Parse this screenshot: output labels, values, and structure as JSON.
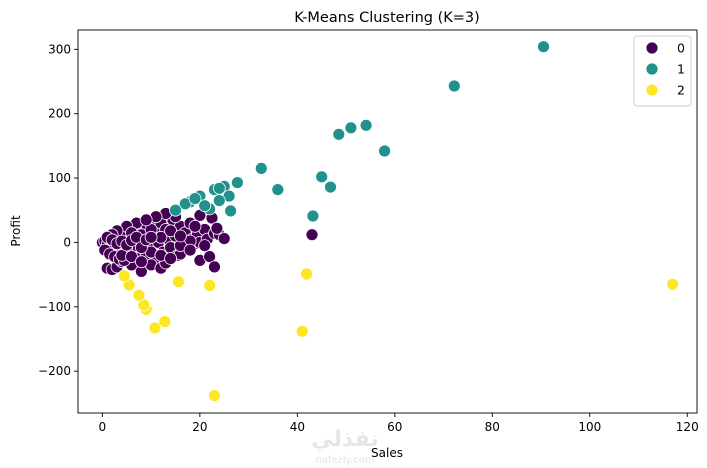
{
  "chart_data": {
    "type": "scatter",
    "title": "K-Means Clustering (K=3)",
    "xlabel": "Sales",
    "ylabel": "Profit",
    "xlim": [
      -5,
      122
    ],
    "ylim": [
      -265,
      330
    ],
    "xticks": [
      0,
      20,
      40,
      60,
      80,
      100,
      120
    ],
    "yticks": [
      -200,
      -100,
      0,
      100,
      200,
      300
    ],
    "legend_position": "top-right",
    "series": [
      {
        "name": "0",
        "color": "#440154",
        "points": [
          [
            0,
            0
          ],
          [
            0.5,
            2
          ],
          [
            1,
            -3
          ],
          [
            1.5,
            5
          ],
          [
            2,
            -8
          ],
          [
            2.5,
            3
          ],
          [
            3,
            -12
          ],
          [
            3,
            10
          ],
          [
            3.5,
            -5
          ],
          [
            4,
            6
          ],
          [
            4.5,
            -15
          ],
          [
            5,
            12
          ],
          [
            5,
            -20
          ],
          [
            5.5,
            0
          ],
          [
            6,
            8
          ],
          [
            6.5,
            -10
          ],
          [
            7,
            18
          ],
          [
            7,
            -25
          ],
          [
            7.5,
            4
          ],
          [
            8,
            -2
          ],
          [
            8.5,
            22
          ],
          [
            9,
            -18
          ],
          [
            9.5,
            10
          ],
          [
            10,
            -6
          ],
          [
            10.5,
            25
          ],
          [
            11,
            14
          ],
          [
            11,
            -28
          ],
          [
            11.5,
            0
          ],
          [
            12,
            30
          ],
          [
            12.5,
            -15
          ],
          [
            13,
            20
          ],
          [
            13.5,
            5
          ],
          [
            14,
            -8
          ],
          [
            14.5,
            35
          ],
          [
            15,
            10
          ],
          [
            15.5,
            -20
          ],
          [
            16,
            25
          ],
          [
            16.5,
            0
          ],
          [
            17,
            15
          ],
          [
            17.5,
            -10
          ],
          [
            18,
            30
          ],
          [
            18.5,
            5
          ],
          [
            19,
            -2
          ],
          [
            19.5,
            12
          ],
          [
            20,
            0
          ],
          [
            20,
            -28
          ],
          [
            21,
            20
          ],
          [
            21.5,
            5
          ],
          [
            22,
            -22
          ],
          [
            22.5,
            38
          ],
          [
            23,
            14
          ],
          [
            23,
            -38
          ],
          [
            24,
            12
          ],
          [
            25,
            6
          ],
          [
            23.5,
            22
          ],
          [
            1,
            -40
          ],
          [
            2,
            -42
          ],
          [
            3,
            -38
          ],
          [
            4,
            -30
          ],
          [
            6,
            -35
          ],
          [
            8,
            -45
          ],
          [
            10,
            -35
          ],
          [
            12,
            -40
          ],
          [
            13,
            -32
          ],
          [
            16,
            -18
          ],
          [
            18,
            2
          ],
          [
            20,
            42
          ],
          [
            21,
            -5
          ],
          [
            9,
            28
          ],
          [
            7,
            30
          ],
          [
            5,
            25
          ],
          [
            3,
            18
          ],
          [
            2,
            12
          ],
          [
            1,
            8
          ],
          [
            0.5,
            -12
          ],
          [
            1.5,
            -18
          ],
          [
            2.5,
            -22
          ],
          [
            3.5,
            -26
          ],
          [
            4.5,
            -28
          ],
          [
            6,
            15
          ],
          [
            8,
            12
          ],
          [
            10,
            20
          ],
          [
            12,
            8
          ],
          [
            14,
            18
          ],
          [
            16,
            -5
          ],
          [
            18,
            -12
          ],
          [
            15,
            40
          ],
          [
            13,
            45
          ],
          [
            11,
            40
          ],
          [
            9,
            35
          ],
          [
            7,
            -5
          ],
          [
            5,
            -10
          ],
          [
            4,
            -20
          ],
          [
            6,
            -22
          ],
          [
            8,
            -30
          ],
          [
            10,
            -15
          ],
          [
            12,
            -20
          ],
          [
            14,
            -25
          ],
          [
            16,
            10
          ],
          [
            19,
            25
          ],
          [
            43,
            12
          ],
          [
            2,
            4
          ],
          [
            3,
            -2
          ],
          [
            4,
            2
          ],
          [
            5,
            -4
          ],
          [
            6,
            3
          ],
          [
            7,
            8
          ],
          [
            8,
            -8
          ],
          [
            9,
            4
          ],
          [
            10,
            8
          ]
        ]
      },
      {
        "name": "1",
        "color": "#21918c",
        "points": [
          [
            90.5,
            304
          ],
          [
            72.2,
            243
          ],
          [
            54.1,
            182
          ],
          [
            51,
            178
          ],
          [
            48.5,
            168
          ],
          [
            57.9,
            142
          ],
          [
            32.6,
            115
          ],
          [
            45,
            102
          ],
          [
            36,
            82
          ],
          [
            46.8,
            86
          ],
          [
            43.2,
            41
          ],
          [
            27.7,
            93
          ],
          [
            25,
            87
          ],
          [
            23,
            82
          ],
          [
            24,
            84
          ],
          [
            26,
            72
          ],
          [
            20,
            72
          ],
          [
            18,
            63
          ],
          [
            22,
            52
          ],
          [
            26.3,
            49
          ],
          [
            17,
            60
          ],
          [
            19,
            68
          ],
          [
            15,
            50
          ],
          [
            21,
            57
          ],
          [
            24,
            65
          ]
        ]
      },
      {
        "name": "2",
        "color": "#fde725",
        "points": [
          [
            117,
            -65
          ],
          [
            41.9,
            -49
          ],
          [
            41,
            -138
          ],
          [
            23,
            -238
          ],
          [
            22,
            -67
          ],
          [
            15.6,
            -61
          ],
          [
            12.8,
            -123
          ],
          [
            10.8,
            -133
          ],
          [
            9,
            -104
          ],
          [
            8.5,
            -97
          ],
          [
            7.5,
            -82
          ],
          [
            5.5,
            -66
          ],
          [
            4.5,
            -52
          ]
        ]
      }
    ]
  },
  "watermark": {
    "text": "نفذلي",
    "subtext": "nafezly.com"
  }
}
